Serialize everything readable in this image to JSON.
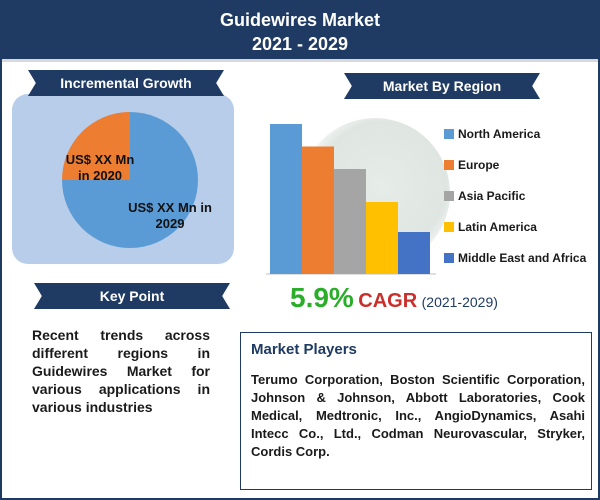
{
  "header": {
    "title_line1": "Guidewires Market",
    "title_line2": "2021 - 2029"
  },
  "incremental": {
    "banner": "Incremental Growth",
    "label_2020": "US$ XX Mn in 2020",
    "label_2029": "US$ XX Mn in 2029"
  },
  "region": {
    "banner": "Market By Region"
  },
  "keypoint": {
    "banner": "Key Point",
    "text": "Recent trends across different regions in Guidewires Market for various applications in various industries"
  },
  "cagr": {
    "value": "5.9%",
    "label": "CAGR",
    "years": "(2021-2029)"
  },
  "players": {
    "title": "Market Players",
    "text": "Terumo Corporation, Boston Scientific Corporation, Johnson & Johnson, Abbott Laboratories, Cook Medical, Medtronic, Inc., AngioDynamics, Asahi Intecc Co., Ltd., Codman Neurovascular, Stryker, Cordis Corp."
  },
  "chart_data": [
    {
      "type": "pie",
      "categories": [
        "2020",
        "2029"
      ],
      "values": [
        25,
        75
      ],
      "colors": [
        "#ed7d31",
        "#5b9bd5"
      ]
    },
    {
      "type": "bar",
      "categories": [
        "North America",
        "Europe",
        "Asia Pacific",
        "Latin America",
        "Middle East and Africa"
      ],
      "values": [
        100,
        85,
        70,
        48,
        28
      ],
      "colors": [
        "#5b9bd5",
        "#ed7d31",
        "#a5a5a5",
        "#ffc000",
        "#4472c4"
      ],
      "ylim": [
        0,
        100
      ],
      "legend": "right"
    }
  ]
}
